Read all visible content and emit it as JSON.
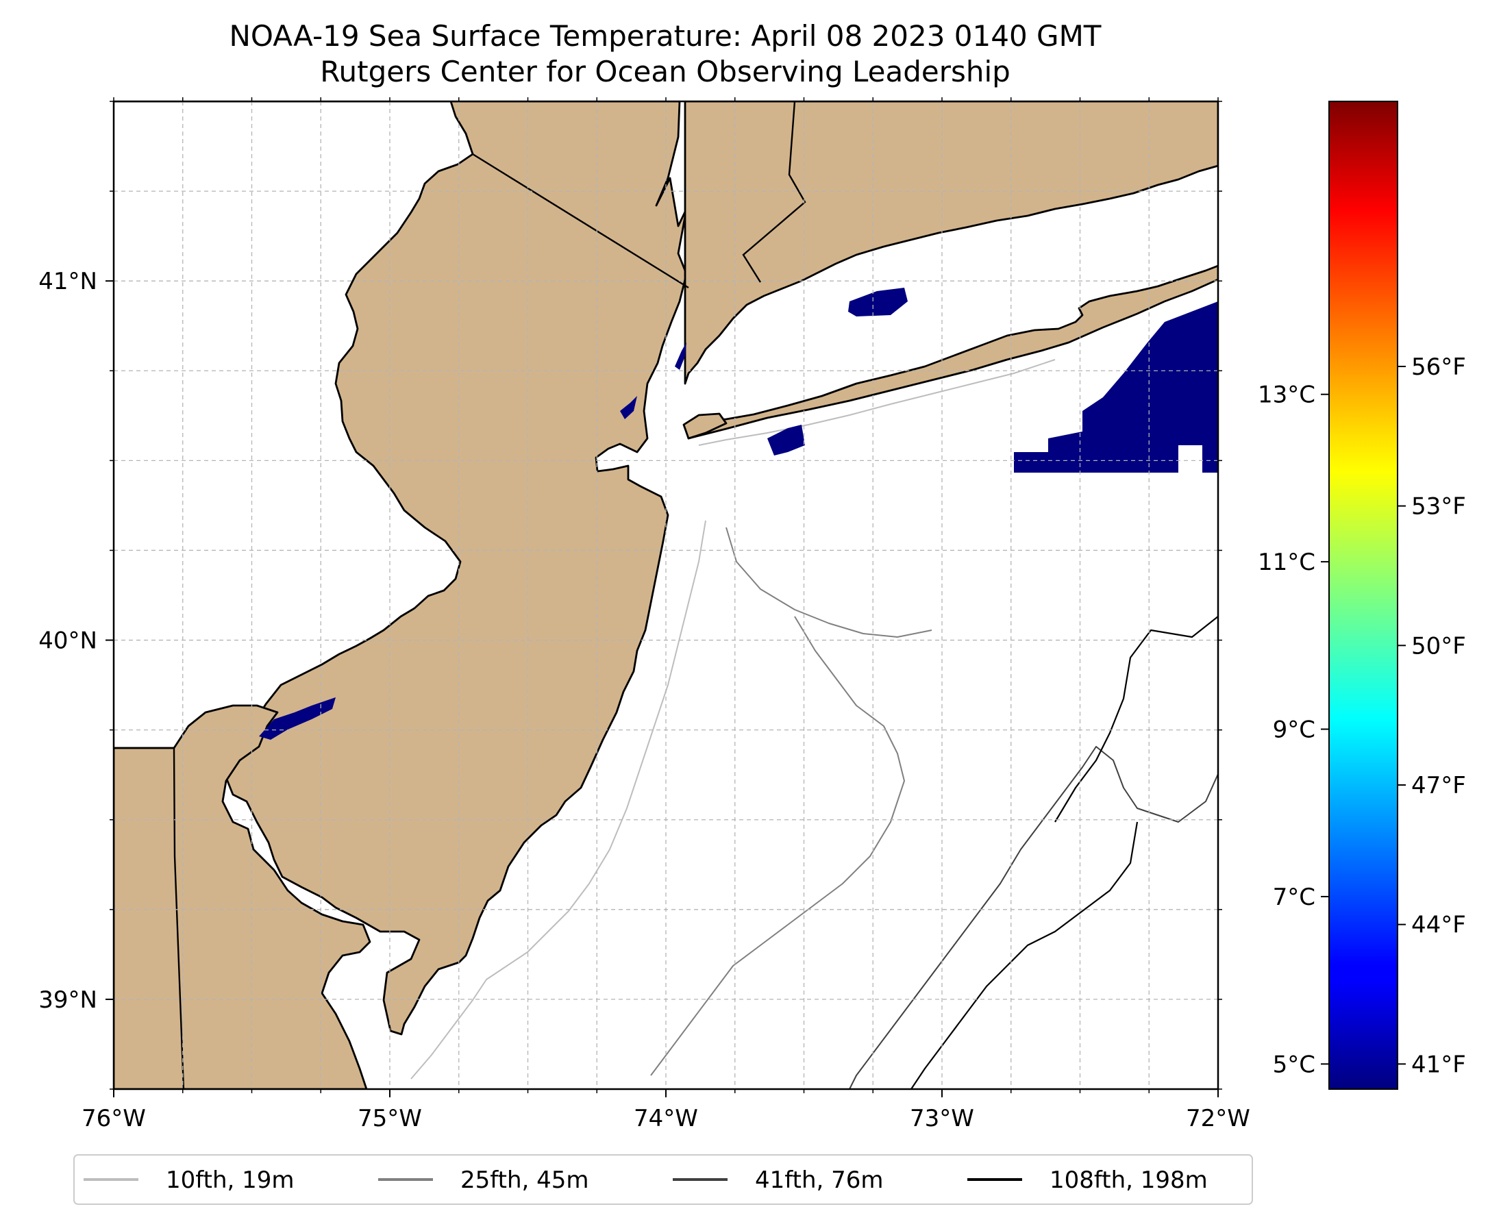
{
  "title": {
    "line1": "NOAA-19 Sea Surface Temperature: April 08 2023 0140 GMT",
    "line2": "Rutgers Center for Ocean Observing Leadership"
  },
  "map": {
    "lon_ticks": [
      {
        "value": -76,
        "label": "76°W"
      },
      {
        "value": -75,
        "label": "75°W"
      },
      {
        "value": -74,
        "label": "74°W"
      },
      {
        "value": -73,
        "label": "73°W"
      },
      {
        "value": -72,
        "label": "72°W"
      }
    ],
    "lat_ticks": [
      {
        "value": 41,
        "label": "41°N"
      },
      {
        "value": 40,
        "label": "40°N"
      },
      {
        "value": 39,
        "label": "39°N"
      }
    ],
    "extent": {
      "lon": [
        -76.0,
        -72.0
      ],
      "lat": [
        38.75,
        41.5
      ]
    },
    "grid": true,
    "colors": {
      "land": "#d2b48c",
      "ocean": "#ffffff",
      "sst_cold": "#000080"
    }
  },
  "colorbar": {
    "colormap": "jet",
    "celsius_ticks": [
      {
        "value": 13,
        "label": "13°C"
      },
      {
        "value": 11,
        "label": "11°C"
      },
      {
        "value": 9,
        "label": "9°C"
      },
      {
        "value": 7,
        "label": "7°C"
      },
      {
        "value": 5,
        "label": "5°C"
      }
    ],
    "fahrenheit_ticks": [
      {
        "value": 56,
        "label": "56°F"
      },
      {
        "value": 53,
        "label": "53°F"
      },
      {
        "value": 50,
        "label": "50°F"
      },
      {
        "value": 47,
        "label": "47°F"
      },
      {
        "value": 44,
        "label": "44°F"
      },
      {
        "value": 41,
        "label": "41°F"
      }
    ]
  },
  "legend": {
    "items": [
      {
        "label": "10fth, 19m",
        "color": "#bdbdbd"
      },
      {
        "label": "25fth, 45m",
        "color": "#808080"
      },
      {
        "label": "41fth, 76m",
        "color": "#404040"
      },
      {
        "label": "108fth, 198m",
        "color": "#000000"
      }
    ]
  }
}
